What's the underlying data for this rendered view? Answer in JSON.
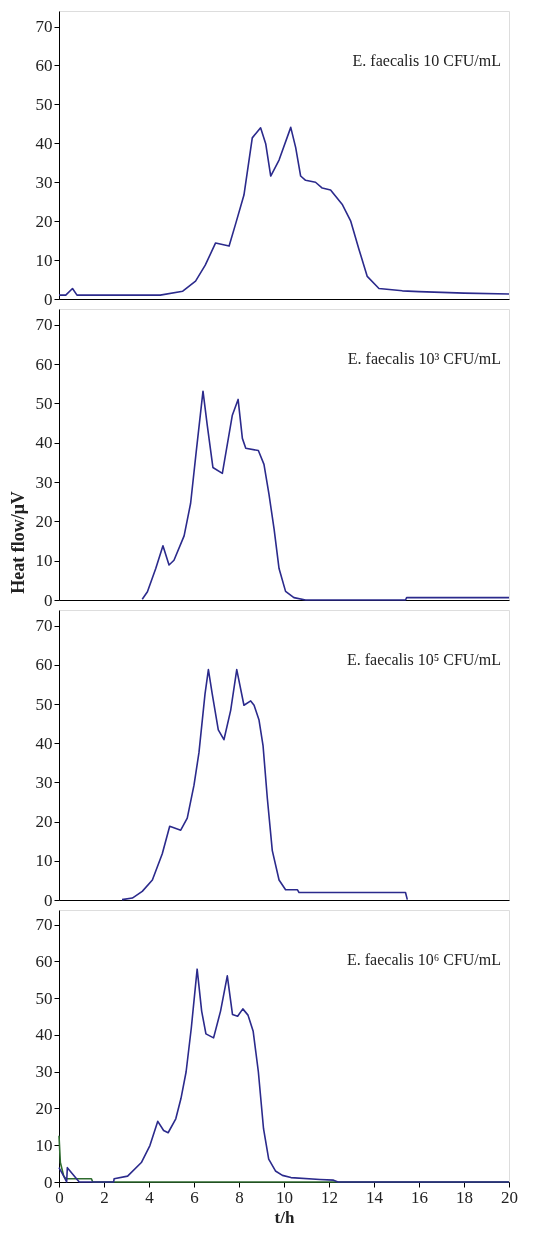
{
  "chart_data": [
    {
      "type": "line",
      "annotations": [
        "E. faecalis 10 CFU/mL"
      ],
      "xlim": [
        0,
        20
      ],
      "xticks": [
        0,
        2,
        4,
        6,
        8,
        10,
        12,
        14,
        16,
        18,
        20
      ],
      "ylim": [
        0,
        74
      ],
      "yticks": [
        0,
        10,
        20,
        30,
        40,
        50,
        60,
        70
      ],
      "tick_labels": "y",
      "grid": false,
      "marker": "none",
      "line_style": "solid",
      "series": [
        {
          "color": "#2b2a8c",
          "x": [
            0,
            0.3,
            0.6,
            0.8,
            2.5,
            3.5,
            4.5,
            5.5,
            6.07,
            6.5,
            6.96,
            7.56,
            7.85,
            8.22,
            8.59,
            8.96,
            9.19,
            9.41,
            9.78,
            10.3,
            10.52,
            10.74,
            10.96,
            11.4,
            11.7,
            12.07,
            12.6,
            12.96,
            13.33,
            13.7,
            14.22,
            15.26,
            16,
            18,
            20
          ],
          "values": [
            1,
            1,
            2.7,
            1,
            1,
            1,
            1,
            2,
            4.6,
            8.7,
            14.4,
            13.6,
            19.3,
            26.7,
            41.4,
            44,
            39.8,
            31.6,
            35.7,
            44.1,
            38.9,
            31.6,
            30.5,
            30,
            28.5,
            28,
            24.2,
            20.1,
            12.8,
            5.8,
            2.7,
            2.1,
            1.9,
            1.5,
            1.3
          ]
        }
      ]
    },
    {
      "type": "line",
      "annotations": [
        "E. faecalis 10³ CFU/mL"
      ],
      "xlim": [
        0,
        20
      ],
      "xticks": [
        0,
        2,
        4,
        6,
        8,
        10,
        12,
        14,
        16,
        18,
        20
      ],
      "ylim": [
        0,
        74
      ],
      "yticks": [
        0,
        10,
        20,
        30,
        40,
        50,
        60,
        70
      ],
      "ylabel": "Heat flow/μV",
      "tick_labels": "y",
      "grid": false,
      "marker": "none",
      "line_style": "solid",
      "series": [
        {
          "color": "#2b2a8c",
          "x": [
            3.7,
            3.93,
            4.3,
            4.62,
            4.89,
            5.11,
            5.56,
            5.85,
            6.1,
            6.4,
            6.59,
            6.84,
            7.26,
            7.7,
            7.96,
            8.15,
            8.3,
            8.86,
            9.11,
            9.33,
            9.56,
            9.78,
            10.07,
            10.44,
            10.96,
            15.4,
            15.45,
            20
          ],
          "values": [
            0.2,
            2.1,
            8,
            13.8,
            8.9,
            10.1,
            16.3,
            24.6,
            37.8,
            53.1,
            44.4,
            33.7,
            32.2,
            46.9,
            51,
            41.1,
            38.6,
            38,
            34.5,
            27,
            18,
            8,
            2.2,
            0.6,
            0,
            0,
            0.6,
            0.6
          ]
        }
      ]
    },
    {
      "type": "line",
      "annotations": [
        "E. faecalis 10⁵ CFU/mL"
      ],
      "xlim": [
        0,
        20
      ],
      "xticks": [
        0,
        2,
        4,
        6,
        8,
        10,
        12,
        14,
        16,
        18,
        20
      ],
      "ylim": [
        0,
        74
      ],
      "yticks": [
        0,
        10,
        20,
        30,
        40,
        50,
        60,
        70
      ],
      "tick_labels": "y",
      "grid": false,
      "marker": "none",
      "line_style": "solid",
      "series": [
        {
          "color": "#2b2a8c",
          "x": [
            2.8,
            3.26,
            3.7,
            4.15,
            4.59,
            4.92,
            5.41,
            5.7,
            6.0,
            6.22,
            6.49,
            6.64,
            6.81,
            7.08,
            7.33,
            7.63,
            7.9,
            8.22,
            8.52,
            8.67,
            8.89,
            9.07,
            9.26,
            9.48,
            9.78,
            10.07,
            10.6,
            10.67,
            15.4,
            15.48
          ],
          "values": [
            0.1,
            0.5,
            2.2,
            5.1,
            11.8,
            18.8,
            17.8,
            20.9,
            29.3,
            37.6,
            52.6,
            58.8,
            52.6,
            43.4,
            40.9,
            48.4,
            58.8,
            49.7,
            50.8,
            49.7,
            45.9,
            39.3,
            25.9,
            12.6,
            5.1,
            2.6,
            2.6,
            1.9,
            1.9,
            0.1
          ]
        }
      ]
    },
    {
      "type": "line",
      "annotations": [
        "E. faecalis 10⁶ CFU/mL"
      ],
      "xlabel": "t/h",
      "xlim": [
        0,
        20
      ],
      "xticks": [
        0,
        2,
        4,
        6,
        8,
        10,
        12,
        14,
        16,
        18,
        20
      ],
      "ylim": [
        0,
        74
      ],
      "yticks": [
        0,
        10,
        20,
        30,
        40,
        50,
        60,
        70
      ],
      "grid": false,
      "marker": "none",
      "line_style": "solid",
      "series": [
        {
          "color": "#2e6b2e",
          "x": [
            0,
            0.06,
            0.21,
            0.3,
            1.44,
            1.5,
            20
          ],
          "values": [
            12.6,
            5.3,
            1.6,
            0.9,
            0.9,
            0,
            0
          ]
        },
        {
          "color": "#2b2a8c",
          "x": [
            0,
            0.21,
            0.34,
            0.37,
            0.9,
            2.43,
            2.45,
            3.05,
            3.66,
            4.04,
            4.39,
            4.65,
            4.85,
            5.19,
            5.42,
            5.65,
            5.88,
            6.14,
            6.34,
            6.53,
            6.87,
            7.18,
            7.48,
            7.71,
            7.94,
            8.17,
            8.4,
            8.63,
            8.86,
            9.09,
            9.32,
            9.62,
            9.93,
            10.31,
            11.6,
            12.2,
            12.4,
            20
          ],
          "values": [
            3.9,
            1.6,
            0,
            3.9,
            0,
            0,
            0.9,
            1.6,
            5.3,
            9.9,
            16.5,
            14,
            13.4,
            17.2,
            22.7,
            30,
            41.9,
            57.9,
            46.5,
            40.3,
            39.2,
            46.5,
            56.1,
            45.6,
            45.1,
            47.1,
            45.4,
            41,
            30,
            14.5,
            6.2,
            3,
            1.8,
            1.2,
            0.7,
            0.5,
            0,
            0
          ]
        }
      ]
    }
  ]
}
